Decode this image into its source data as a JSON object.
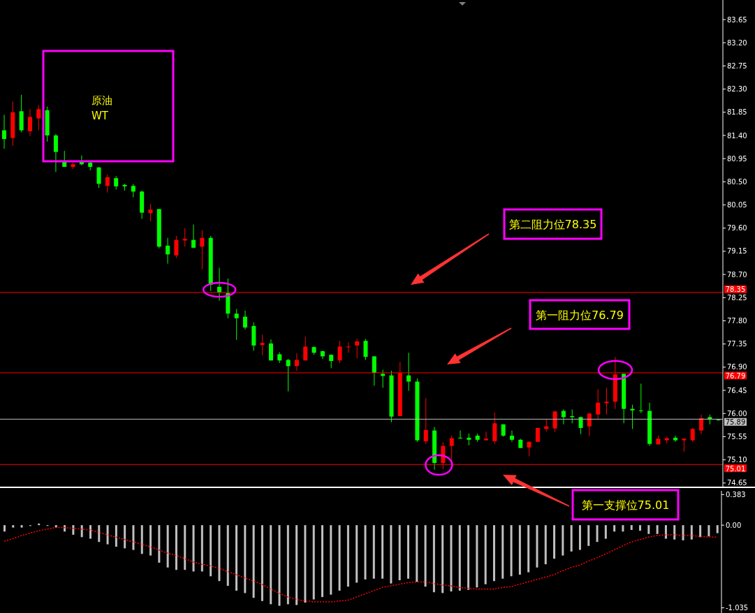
{
  "chart_data": [
    {
      "type": "candlestick",
      "title": "原油\nWT",
      "categories": [
        null,
        null,
        null,
        null,
        null,
        null,
        null,
        null,
        null,
        null,
        null,
        null,
        null,
        null,
        null,
        null,
        null,
        null,
        null,
        null,
        null,
        null,
        null,
        null,
        null,
        null,
        null,
        null,
        null,
        null,
        null,
        null,
        null,
        null,
        null,
        null,
        null,
        null,
        null,
        null,
        null,
        null,
        null,
        null,
        null,
        null,
        null,
        null,
        null,
        null,
        null,
        null,
        null,
        null,
        null,
        null,
        null,
        null,
        null,
        null,
        null,
        null,
        null,
        null,
        null,
        null,
        null,
        null,
        null,
        null,
        null,
        null,
        null,
        null,
        null,
        null,
        null,
        null,
        null,
        null,
        null,
        null,
        null,
        null
      ],
      "ohlc": [
        [
          81.5,
          81.8,
          81.14,
          81.33
        ],
        [
          81.35,
          82.06,
          81.2,
          81.85
        ],
        [
          81.87,
          82.19,
          81.46,
          81.5
        ],
        [
          81.48,
          81.91,
          81.39,
          81.76
        ],
        [
          81.73,
          81.99,
          81.5,
          81.91
        ],
        [
          81.89,
          81.96,
          81.28,
          81.4
        ],
        [
          81.4,
          81.43,
          80.69,
          81.08
        ],
        [
          80.9,
          81.1,
          80.79,
          80.79
        ],
        [
          80.79,
          80.87,
          80.75,
          80.84
        ],
        [
          80.9,
          81.01,
          80.82,
          80.84
        ],
        [
          80.87,
          80.89,
          80.72,
          80.79
        ],
        [
          80.78,
          80.78,
          80.38,
          80.46
        ],
        [
          80.42,
          80.64,
          80.29,
          80.59
        ],
        [
          80.57,
          80.61,
          80.35,
          80.41
        ],
        [
          80.44,
          80.46,
          80.33,
          80.41
        ],
        [
          80.42,
          80.46,
          80.2,
          80.31
        ],
        [
          80.31,
          80.33,
          79.78,
          79.9
        ],
        [
          79.89,
          80.07,
          79.73,
          79.96
        ],
        [
          79.97,
          79.97,
          79.21,
          79.24
        ],
        [
          79.26,
          79.41,
          78.91,
          79.09
        ],
        [
          79.07,
          79.45,
          79.02,
          79.37
        ],
        [
          79.36,
          79.6,
          79.24,
          79.39
        ],
        [
          79.37,
          79.67,
          79.21,
          79.22
        ],
        [
          79.24,
          79.56,
          78.8,
          79.41
        ],
        [
          79.41,
          79.45,
          78.38,
          78.5
        ],
        [
          78.46,
          78.83,
          78.19,
          78.35
        ],
        [
          78.34,
          78.62,
          77.85,
          77.94
        ],
        [
          77.94,
          78.03,
          77.43,
          77.85
        ],
        [
          77.88,
          78.0,
          77.63,
          77.67
        ],
        [
          77.7,
          77.77,
          77.22,
          77.32
        ],
        [
          77.33,
          77.53,
          77.13,
          77.37
        ],
        [
          77.36,
          77.44,
          77.03,
          77.03
        ],
        [
          77.15,
          77.19,
          76.98,
          77.03
        ],
        [
          77.04,
          77.06,
          76.43,
          76.92
        ],
        [
          76.92,
          77.17,
          76.83,
          77.04
        ],
        [
          77.03,
          77.49,
          77.03,
          77.3
        ],
        [
          77.29,
          77.3,
          77.14,
          77.18
        ],
        [
          77.21,
          77.22,
          77.06,
          77.11
        ],
        [
          77.14,
          77.15,
          76.88,
          77.02
        ],
        [
          77.03,
          77.41,
          76.98,
          77.3
        ],
        [
          77.29,
          77.38,
          77.18,
          77.3
        ],
        [
          77.32,
          77.45,
          77.07,
          77.4
        ],
        [
          77.41,
          77.45,
          77.04,
          77.1
        ],
        [
          77.11,
          77.11,
          76.54,
          76.79
        ],
        [
          76.77,
          76.85,
          76.5,
          76.73
        ],
        [
          76.74,
          76.83,
          75.83,
          75.94
        ],
        [
          75.95,
          77.0,
          75.95,
          76.79
        ],
        [
          76.74,
          77.18,
          76.44,
          76.62
        ],
        [
          76.62,
          76.68,
          75.45,
          75.48
        ],
        [
          75.46,
          76.3,
          75.41,
          75.68
        ],
        [
          75.67,
          75.74,
          74.91,
          75.04
        ],
        [
          75.04,
          75.44,
          74.92,
          75.37
        ],
        [
          75.37,
          75.57,
          75.08,
          75.52
        ],
        [
          75.53,
          75.67,
          75.51,
          75.52
        ],
        [
          75.53,
          75.61,
          75.38,
          75.49
        ],
        [
          75.57,
          75.61,
          75.45,
          75.49
        ],
        [
          75.48,
          75.65,
          75.48,
          75.51
        ],
        [
          75.46,
          76.02,
          75.41,
          75.81
        ],
        [
          75.79,
          75.79,
          75.55,
          75.57
        ],
        [
          75.57,
          75.67,
          75.45,
          75.49
        ],
        [
          75.49,
          75.51,
          75.33,
          75.33
        ],
        [
          75.34,
          75.46,
          75.17,
          75.45
        ],
        [
          75.45,
          75.72,
          75.45,
          75.72
        ],
        [
          75.7,
          75.89,
          75.65,
          75.75
        ],
        [
          75.71,
          76.05,
          75.64,
          76.04
        ],
        [
          76.05,
          76.08,
          75.79,
          75.93
        ],
        [
          75.95,
          76.08,
          75.81,
          75.93
        ],
        [
          75.93,
          75.94,
          75.6,
          75.72
        ],
        [
          75.75,
          76.01,
          75.56,
          76.0
        ],
        [
          75.98,
          76.47,
          75.9,
          76.21
        ],
        [
          76.2,
          76.5,
          75.98,
          76.23
        ],
        [
          76.23,
          77.1,
          76.09,
          76.76
        ],
        [
          76.77,
          76.77,
          75.81,
          76.09
        ],
        [
          76.09,
          76.17,
          75.7,
          76.06
        ],
        [
          76.06,
          76.58,
          76.01,
          76.05
        ],
        [
          76.05,
          76.21,
          75.37,
          75.41
        ],
        [
          75.4,
          75.57,
          75.4,
          75.51
        ],
        [
          75.48,
          75.55,
          75.42,
          75.52
        ],
        [
          75.53,
          75.57,
          75.45,
          75.48
        ],
        [
          75.48,
          75.52,
          75.26,
          75.51
        ],
        [
          75.48,
          75.72,
          75.45,
          75.7
        ],
        [
          75.67,
          75.98,
          75.6,
          75.91
        ],
        [
          75.93,
          75.98,
          75.79,
          75.89
        ],
        [
          75.89,
          75.89,
          75.86,
          75.87
        ]
      ],
      "colors": [
        "#00ff00",
        "#ff0000",
        "#00ff00",
        "#ff0000",
        "#ff0000",
        "#00ff00",
        "#00ff00",
        "#00ff00",
        "#ff0000",
        "#00ff00",
        "#00ff00",
        "#00ff00",
        "#ff0000",
        "#00ff00",
        "#00ff00",
        "#00ff00",
        "#00ff00",
        "#ff0000",
        "#00ff00",
        "#00ff00",
        "#ff0000",
        "#ff0000",
        "#00ff00",
        "#ff0000",
        "#00ff00",
        "#00ff00",
        "#00ff00",
        "#00ff00",
        "#00ff00",
        "#00ff00",
        "#ff0000",
        "#00ff00",
        "#00ff00",
        "#00ff00",
        "#ff0000",
        "#ff0000",
        "#00ff00",
        "#00ff00",
        "#00ff00",
        "#ff0000",
        "#ff0000",
        "#ff0000",
        "#00ff00",
        "#00ff00",
        "#00ff00",
        "#00ff00",
        "#ff0000",
        "#00ff00",
        "#00ff00",
        "#ff0000",
        "#00ff00",
        "#ff0000",
        "#ff0000",
        "#00ff00",
        "#00ff00",
        "#00ff00",
        "#ff0000",
        "#ff0000",
        "#00ff00",
        "#00ff00",
        "#00ff00",
        "#ff0000",
        "#ff0000",
        "#ff0000",
        "#ff0000",
        "#00ff00",
        "#00ff00",
        "#00ff00",
        "#ff0000",
        "#ff0000",
        "#ff0000",
        "#ff0000",
        "#00ff00",
        "#00ff00",
        "#00ff00",
        "#00ff00",
        "#ff0000",
        "#ff0000",
        "#00ff00",
        "#ff0000",
        "#ff0000",
        "#ff0000",
        "#00ff00",
        "#00ff00"
      ],
      "ylim": [
        74.58,
        84.03
      ],
      "yticks": [
        83.65,
        {
          "value": 83.2,
          "label": "83.20"
        },
        82.75,
        {
          "value": 82.3,
          "label": "82.30"
        },
        81.85,
        {
          "value": 81.4,
          "label": "81.40"
        },
        80.95,
        {
          "value": 80.5,
          "label": "80.50"
        },
        80.05,
        {
          "value": 79.6,
          "label": "79.60"
        },
        79.15,
        {
          "value": 78.7,
          "label": "78.70"
        },
        78.25,
        {
          "value": 77.8,
          "label": "77.80"
        },
        77.35,
        {
          "value": 76.9,
          "label": "76.90"
        },
        76.45,
        {
          "value": 76,
          "label": "76.00"
        },
        75.55,
        {
          "value": 75.1,
          "label": "75.10"
        },
        74.65
      ],
      "tick_labels": "y",
      "ref_lines": [
        {
          "axis": "y",
          "value": 78.35,
          "label": "78.35",
          "color": "#ff0000"
        },
        {
          "axis": "y",
          "value": 76.79,
          "label": "76.79",
          "color": "#ff0000"
        },
        {
          "axis": "y",
          "value": 75.89,
          "label": "75.89",
          "color": "#c0c0c0"
        },
        {
          "axis": "y",
          "value": 75.01,
          "label": "75.01",
          "color": "#ff0000"
        }
      ],
      "annotations": [
        "第二阻力位78.35",
        "第一阻力位76.79",
        "第一支撑位75.01"
      ]
    },
    {
      "type": "bar",
      "categories": [
        null,
        null,
        null,
        null,
        null,
        null,
        null,
        null,
        null,
        null,
        null,
        null,
        null,
        null,
        null,
        null,
        null,
        null,
        null,
        null,
        null,
        null,
        null,
        null,
        null,
        null,
        null,
        null,
        null,
        null,
        null,
        null,
        null,
        null,
        null,
        null,
        null,
        null,
        null,
        null,
        null,
        null,
        null,
        null,
        null,
        null,
        null,
        null,
        null,
        null,
        null,
        null,
        null,
        null,
        null,
        null,
        null,
        null,
        null,
        null,
        null,
        null,
        null,
        null,
        null,
        null,
        null,
        null,
        null,
        null,
        null,
        null,
        null,
        null,
        null,
        null,
        null,
        null,
        null,
        null,
        null,
        null,
        null,
        null
      ],
      "series": [
        {
          "type": "bar",
          "color": "#c0c0c0",
          "values": [
            -0.08,
            -0.03,
            -0.03,
            -0.01,
            0.02,
            -0.01,
            -0.03,
            -0.08,
            -0.12,
            -0.15,
            -0.17,
            -0.21,
            -0.24,
            -0.27,
            -0.29,
            -0.31,
            -0.36,
            -0.38,
            -0.47,
            -0.53,
            -0.56,
            -0.56,
            -0.58,
            -0.58,
            -0.64,
            -0.7,
            -0.76,
            -0.82,
            -0.85,
            -0.91,
            -0.95,
            -0.99,
            -1.01,
            -0.99,
            -1.0,
            -0.97,
            -0.93,
            -0.9,
            -0.87,
            -0.82,
            -0.77,
            -0.72,
            -0.68,
            -0.67,
            -0.67,
            -0.73,
            -0.69,
            -0.67,
            -0.71,
            -0.77,
            -0.84,
            -0.85,
            -0.83,
            -0.82,
            -0.81,
            -0.78,
            -0.74,
            -0.7,
            -0.67,
            -0.64,
            -0.62,
            -0.59,
            -0.53,
            -0.49,
            -0.42,
            -0.38,
            -0.33,
            -0.31,
            -0.26,
            -0.21,
            -0.17,
            -0.08,
            -0.08,
            -0.06,
            -0.07,
            -0.11,
            -0.11,
            -0.17,
            -0.18,
            -0.19,
            -0.18,
            -0.15,
            -0.14,
            -0.1
          ]
        },
        {
          "type": "line",
          "color": "#ff0000",
          "line_style": "dotted",
          "values": [
            -0.2,
            -0.17,
            -0.13,
            -0.1,
            -0.07,
            -0.05,
            -0.03,
            -0.03,
            -0.04,
            -0.05,
            -0.06,
            -0.09,
            -0.12,
            -0.15,
            -0.18,
            -0.21,
            -0.24,
            -0.27,
            -0.31,
            -0.35,
            -0.38,
            -0.42,
            -0.46,
            -0.49,
            -0.51,
            -0.54,
            -0.58,
            -0.62,
            -0.66,
            -0.7,
            -0.74,
            -0.8,
            -0.85,
            -0.9,
            -0.93,
            -0.95,
            -0.96,
            -0.96,
            -0.96,
            -0.95,
            -0.94,
            -0.9,
            -0.86,
            -0.82,
            -0.78,
            -0.76,
            -0.74,
            -0.72,
            -0.71,
            -0.71,
            -0.73,
            -0.75,
            -0.76,
            -0.78,
            -0.79,
            -0.8,
            -0.8,
            -0.8,
            -0.78,
            -0.77,
            -0.74,
            -0.71,
            -0.68,
            -0.65,
            -0.62,
            -0.57,
            -0.53,
            -0.5,
            -0.45,
            -0.41,
            -0.36,
            -0.31,
            -0.26,
            -0.21,
            -0.18,
            -0.15,
            -0.13,
            -0.12,
            -0.12,
            -0.13,
            -0.13,
            -0.14,
            -0.15,
            -0.15
          ]
        }
      ],
      "ylim": [
        -1.1,
        0.43
      ],
      "yticks": [
        0.383,
        {
          "value": 0,
          "label": "0.00"
        },
        -1.035
      ],
      "tick_labels": "y"
    }
  ]
}
